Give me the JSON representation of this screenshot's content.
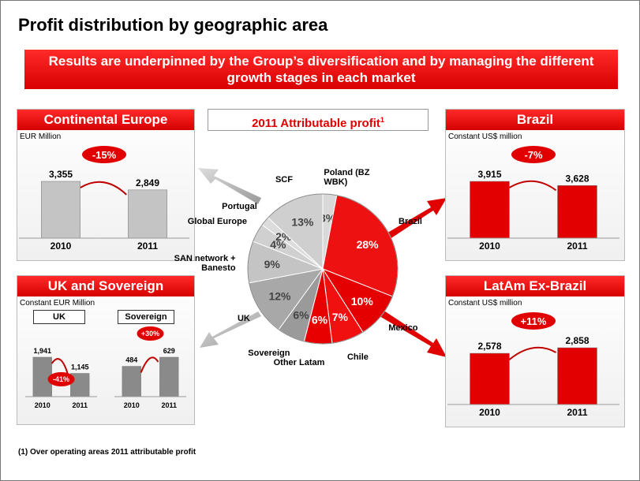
{
  "title": "Profit distribution by geographic area",
  "banner": "Results are underpinned by the Group’s diversification and by managing the different growth stages in each market",
  "uk_sovereign": {
    "title": "UK and Sovereign",
    "subtitle": "Constant EUR Million"
  },
  "footnote": "(1) Over operating areas 2011 attributable profit",
  "chart_data": [
    {
      "type": "pie",
      "title": "2011 Attributable profit",
      "title_note": "1",
      "categories": [
        "Poland (BZ WBK)",
        "Brazil",
        "Mexico",
        "Chile",
        "Other Latam",
        "Sovereign",
        "UK",
        "SAN network + Banesto",
        "Global Europe",
        "Portugal",
        "SCF"
      ],
      "values": [
        3,
        28,
        10,
        7,
        6,
        6,
        12,
        9,
        4,
        2,
        13
      ],
      "value_labels": [
        "3%",
        "28%",
        "10%",
        "7%",
        "6%",
        "6%",
        "12%",
        "9%",
        "4%",
        "2%",
        "13%"
      ],
      "colors": [
        "#d9d9d9",
        "#ee1111",
        "#e40000",
        "#f01010",
        "#e80000",
        "#9a9a9a",
        "#a8a8a8",
        "#c4c4c4",
        "#d0d0d0",
        "#dcdcdc",
        "#cfcfcf"
      ]
    },
    {
      "type": "bar",
      "title": "Continental Europe",
      "subtitle": "EUR Million",
      "categories": [
        "2010",
        "2011"
      ],
      "values": [
        3355,
        2849
      ],
      "value_labels": [
        "3,355",
        "2,849"
      ],
      "change_label": "-15%",
      "color": "#c4c4c4"
    },
    {
      "type": "bar",
      "title": "Brazil",
      "subtitle": "Constant US$ million",
      "categories": [
        "2010",
        "2011"
      ],
      "values": [
        3915,
        3628
      ],
      "value_labels": [
        "3,915",
        "3,628"
      ],
      "change_label": "-7%",
      "color": "#e30000"
    },
    {
      "type": "bar",
      "title": "UK",
      "categories": [
        "2010",
        "2011"
      ],
      "values": [
        1941,
        1145
      ],
      "value_labels": [
        "1,941",
        "1,145"
      ],
      "change_label": "-41%",
      "color": "#8a8a8a"
    },
    {
      "type": "bar",
      "title": "Sovereign",
      "categories": [
        "2010",
        "2011"
      ],
      "values": [
        484,
        629
      ],
      "change_label": "+30%",
      "color": "#8a8a8a"
    },
    {
      "type": "bar",
      "title": "LatAm Ex-Brazil",
      "subtitle": "Constant US$ million",
      "categories": [
        "2010",
        "2011"
      ],
      "values": [
        2578,
        2858
      ],
      "value_labels": [
        "2,578",
        "2,858"
      ],
      "change_label": "+11%",
      "color": "#e30000"
    }
  ]
}
